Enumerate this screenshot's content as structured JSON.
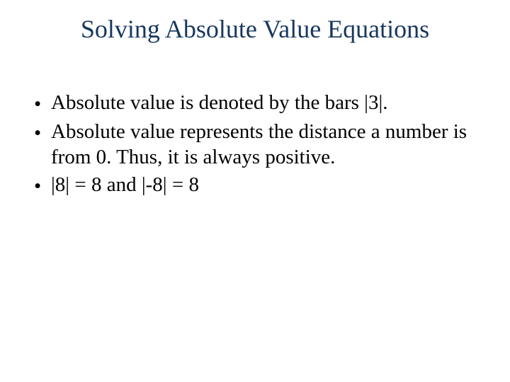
{
  "slide": {
    "title": "Solving Absolute Value Equations",
    "title_color": "#17375e",
    "body_color": "#000000",
    "background_color": "#ffffff",
    "bullets": [
      "Absolute value is denoted by the bars |3|.",
      "Absolute value represents the distance a number is from 0.  Thus, it is always positive.",
      "|8| = 8  and  |-8| = 8"
    ]
  }
}
